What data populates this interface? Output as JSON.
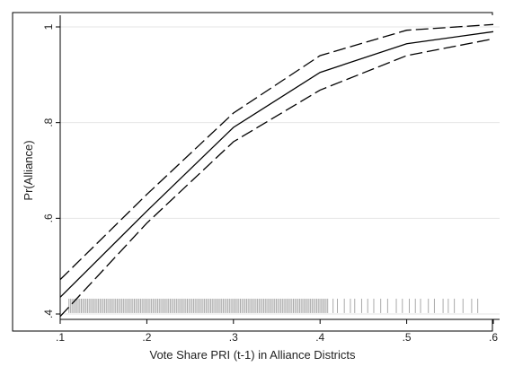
{
  "chart_data": {
    "type": "line",
    "title": "",
    "xlabel": "Vote Share PRI (t-1) in Alliance Districts",
    "ylabel": "Pr(Alliance)",
    "xlim": [
      0.1,
      0.6
    ],
    "ylim": [
      0.4,
      1.0
    ],
    "x_ticks": [
      {
        "value": 0.1,
        "label": ".1"
      },
      {
        "value": 0.2,
        "label": ".2"
      },
      {
        "value": 0.3,
        "label": ".3"
      },
      {
        "value": 0.4,
        "label": ".4"
      },
      {
        "value": 0.5,
        "label": ".5"
      },
      {
        "value": 0.6,
        "label": ".6"
      }
    ],
    "y_ticks": [
      {
        "value": 0.4,
        "label": ".4"
      },
      {
        "value": 0.6,
        "label": ".6"
      },
      {
        "value": 0.8,
        "label": ".8"
      },
      {
        "value": 1.0,
        "label": "1"
      }
    ],
    "grid": "horizontal",
    "legend": "none",
    "x": [
      0.1,
      0.2,
      0.3,
      0.4,
      0.5,
      0.6
    ],
    "series": [
      {
        "style": "solid",
        "values": [
          0.435,
          0.615,
          0.79,
          0.905,
          0.965,
          0.99
        ]
      },
      {
        "style": "dashed",
        "values": [
          0.472,
          0.65,
          0.82,
          0.94,
          0.993,
          1.005
        ]
      },
      {
        "style": "dashed",
        "values": [
          0.395,
          0.59,
          0.76,
          0.868,
          0.94,
          0.975
        ]
      }
    ],
    "rug": {
      "color": "#aaaaaa",
      "y_range": [
        0.402,
        0.432
      ],
      "dense_from": 0.11,
      "dense_to": 0.41,
      "sparse_values": [
        0.415,
        0.42,
        0.428,
        0.435,
        0.44,
        0.448,
        0.455,
        0.462,
        0.47,
        0.478,
        0.488,
        0.495,
        0.503,
        0.51,
        0.516,
        0.525,
        0.532,
        0.542,
        0.548,
        0.555,
        0.565,
        0.575,
        0.582
      ]
    }
  }
}
